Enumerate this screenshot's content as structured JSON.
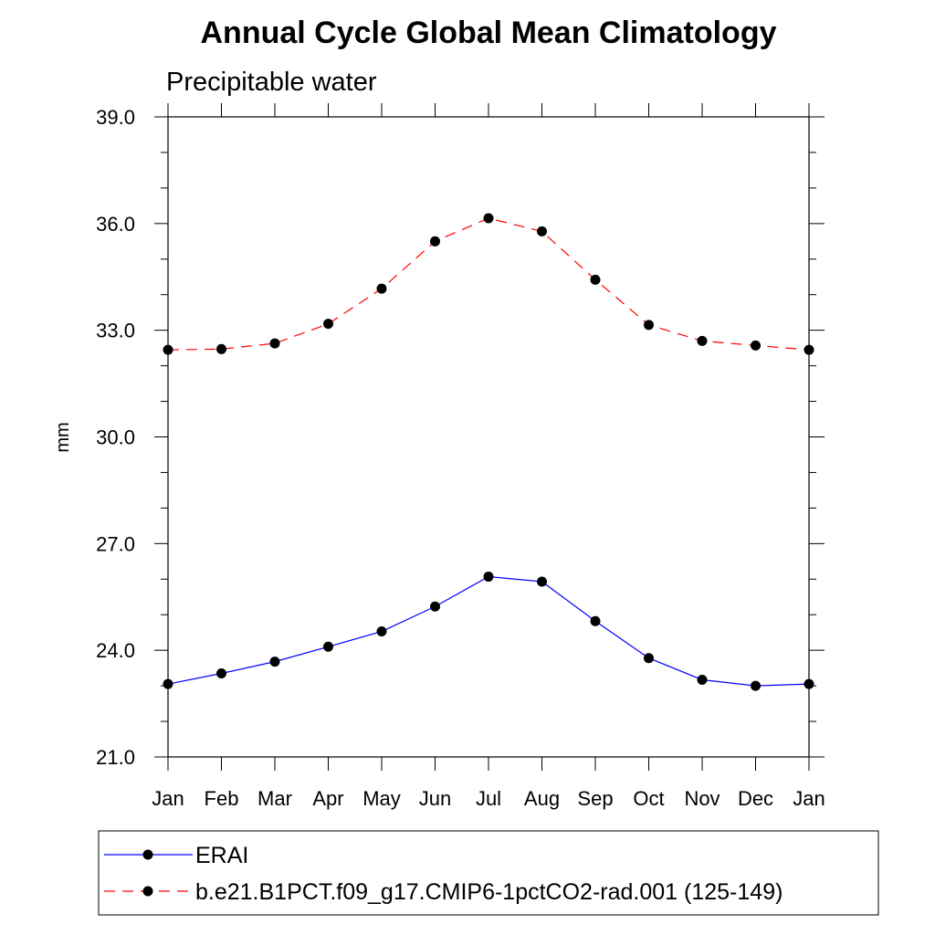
{
  "chart_data": {
    "type": "line",
    "title": "Annual Cycle Global Mean Climatology",
    "subtitle": "Precipitable water",
    "ylabel": "mm",
    "xlabel": "",
    "ylim": [
      21.0,
      39.0
    ],
    "yticks": [
      "21.0",
      "24.0",
      "27.0",
      "30.0",
      "33.0",
      "36.0",
      "39.0"
    ],
    "yticks_values": [
      21,
      24,
      27,
      30,
      33,
      36,
      39
    ],
    "categories": [
      "Jan",
      "Feb",
      "Mar",
      "Apr",
      "May",
      "Jun",
      "Jul",
      "Aug",
      "Sep",
      "Oct",
      "Nov",
      "Dec",
      "Jan"
    ],
    "series": [
      {
        "name": "ERAI",
        "color": "#0000ff",
        "dash": "solid",
        "values": [
          23.05,
          23.35,
          23.68,
          24.1,
          24.53,
          25.23,
          26.07,
          25.93,
          24.82,
          23.78,
          23.17,
          23.0,
          23.05
        ]
      },
      {
        "name": "b.e21.B1PCT.f09_g17.CMIP6-1pctCO2-rad.001 (125-149)",
        "color": "#ff0000",
        "dash": "dashed",
        "values": [
          32.45,
          32.47,
          32.63,
          33.18,
          34.17,
          35.5,
          36.15,
          35.78,
          34.42,
          33.15,
          32.7,
          32.57,
          32.45
        ]
      }
    ]
  }
}
